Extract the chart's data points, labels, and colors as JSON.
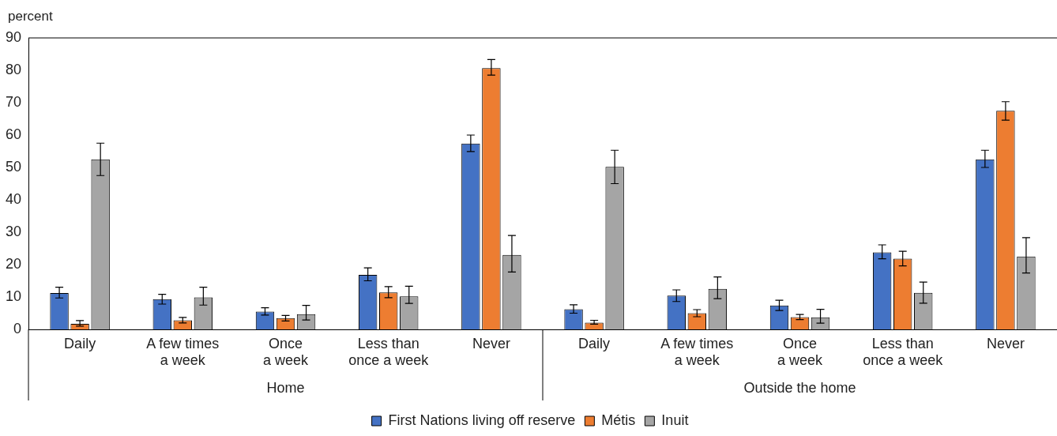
{
  "chart_data": {
    "type": "bar",
    "ylabel": "percent",
    "categories": [
      "Daily",
      "A few times\na week",
      "Once\na week",
      "Less than\nonce a week",
      "Never",
      "Daily",
      "A few times\na week",
      "Once\na week",
      "Less than\nonce a week",
      "Never"
    ],
    "annotations": [
      "Home",
      "Outside the home"
    ],
    "series": [
      {
        "name": "First Nations living off reserve",
        "color": "#4472c4",
        "values": [
          11.2,
          9.3,
          5.5,
          16.8,
          57.4,
          6.2,
          10.4,
          7.4,
          23.8,
          52.5
        ],
        "errors": [
          [
            9.7,
            13
          ],
          [
            7.8,
            10.8
          ],
          [
            4.4,
            6.7
          ],
          [
            15,
            19
          ],
          [
            54.9,
            60
          ],
          [
            5,
            7.6
          ],
          [
            8.6,
            12.2
          ],
          [
            5.8,
            9
          ],
          [
            21.8,
            26.1
          ],
          [
            50,
            55.3
          ]
        ]
      },
      {
        "name": "Métis",
        "color": "#ed7d31",
        "values": [
          1.7,
          2.8,
          3.5,
          11.4,
          80.7,
          2.1,
          5,
          3.8,
          21.8,
          67.5
        ],
        "errors": [
          [
            1,
            2.7
          ],
          [
            2,
            3.7
          ],
          [
            2.6,
            4.3
          ],
          [
            9.8,
            13.2
          ],
          [
            78.5,
            83.3
          ],
          [
            1.6,
            2.8
          ],
          [
            3.9,
            6.1
          ],
          [
            3,
            4.6
          ],
          [
            19.6,
            24.1
          ],
          [
            64.6,
            70.3
          ]
        ]
      },
      {
        "name": "Inuit",
        "color": "#a5a5a5",
        "values": [
          52.5,
          9.9,
          4.7,
          10.2,
          23,
          50.2,
          12.5,
          3.7,
          11.3,
          22.5
        ],
        "errors": [
          [
            47.5,
            57.5
          ],
          [
            7.5,
            13
          ],
          [
            2.9,
            7.4
          ],
          [
            8,
            13.3
          ],
          [
            17.7,
            29
          ],
          [
            45,
            55.3
          ],
          [
            9.5,
            16.2
          ],
          [
            1.9,
            6.2
          ],
          [
            8.1,
            14.6
          ],
          [
            17.4,
            28.3
          ]
        ]
      }
    ],
    "ylim": [
      0,
      90
    ],
    "yticks": [
      0,
      10,
      20,
      30,
      40,
      50,
      60,
      70,
      80,
      90
    ],
    "grid": false,
    "legend": "bottom"
  }
}
